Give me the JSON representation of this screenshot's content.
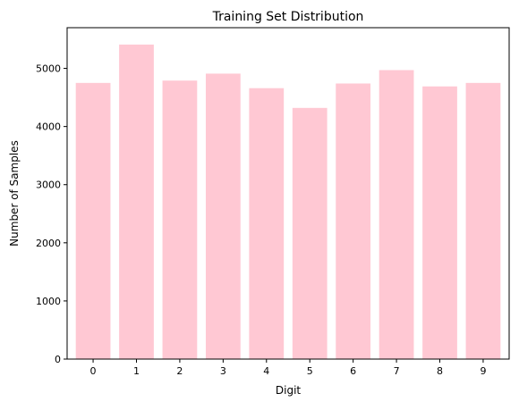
{
  "chart_data": {
    "type": "bar",
    "title": "Training Set Distribution",
    "xlabel": "Digit",
    "ylabel": "Number of Samples",
    "categories": [
      "0",
      "1",
      "2",
      "3",
      "4",
      "5",
      "6",
      "7",
      "8",
      "9"
    ],
    "values": [
      4750,
      5410,
      4790,
      4910,
      4660,
      4320,
      4740,
      4970,
      4690,
      4750
    ],
    "ylim": [
      0,
      5700
    ],
    "yticks": [
      0,
      1000,
      2000,
      3000,
      4000,
      5000
    ],
    "bar_color": "#ffc8d3",
    "grid": false,
    "legend": "none"
  }
}
